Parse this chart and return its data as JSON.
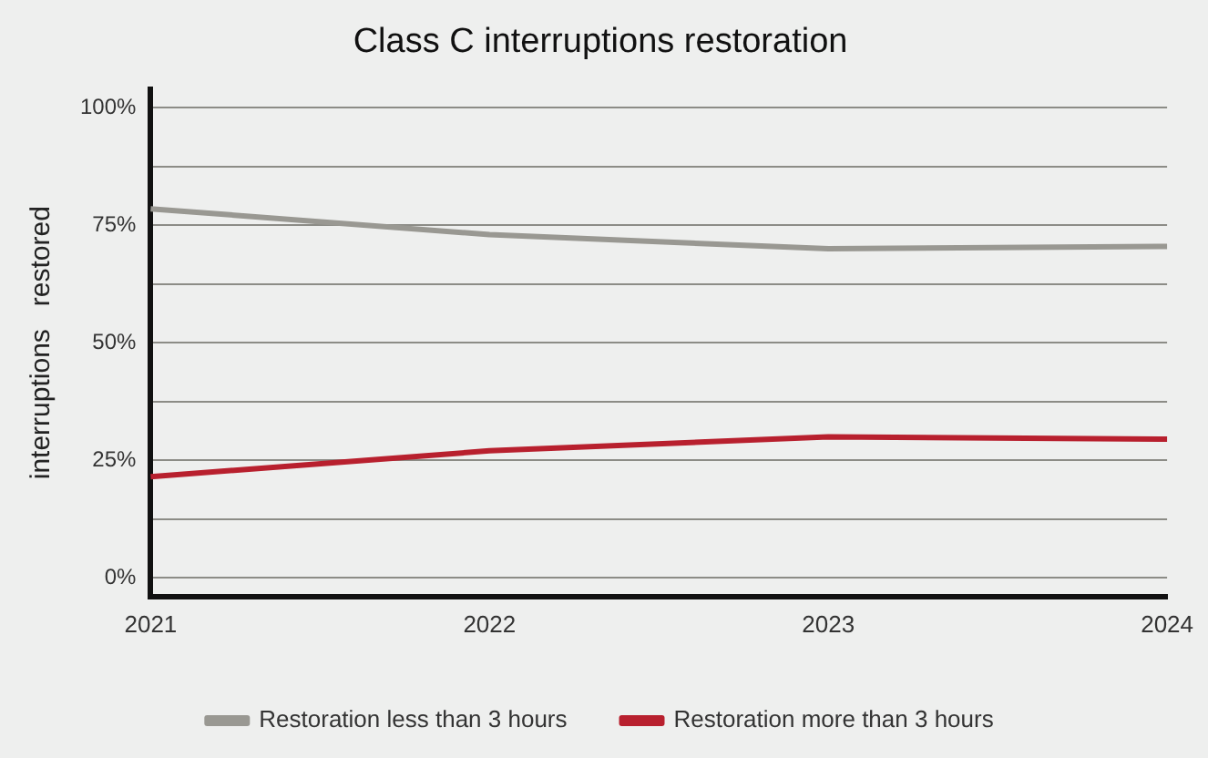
{
  "chart_data": {
    "type": "line",
    "title": "Class C interruptions restoration",
    "ylabel": "interruptions   restored",
    "categories": [
      "2021",
      "2022",
      "2023",
      "2024"
    ],
    "series": [
      {
        "name": "Restoration less than 3 hours",
        "color": "#999892",
        "values": [
          78.5,
          73,
          70,
          70.5
        ]
      },
      {
        "name": "Restoration more than 3 hours",
        "color": "#b8202e",
        "values": [
          21.5,
          27,
          30,
          29.5
        ]
      }
    ],
    "ylim": [
      -4,
      104
    ],
    "yticks": [
      {
        "value": 0,
        "label": "0%"
      },
      {
        "value": 12.5,
        "label": null
      },
      {
        "value": 25,
        "label": "25%"
      },
      {
        "value": 37.5,
        "label": null
      },
      {
        "value": 50,
        "label": "50%"
      },
      {
        "value": 62.5,
        "label": null
      },
      {
        "value": 75,
        "label": "75%"
      },
      {
        "value": 87.5,
        "label": null
      },
      {
        "value": 100,
        "label": "100%"
      }
    ],
    "grid": "y",
    "legend": "bottom",
    "marker": "none",
    "line_style": "solid"
  }
}
